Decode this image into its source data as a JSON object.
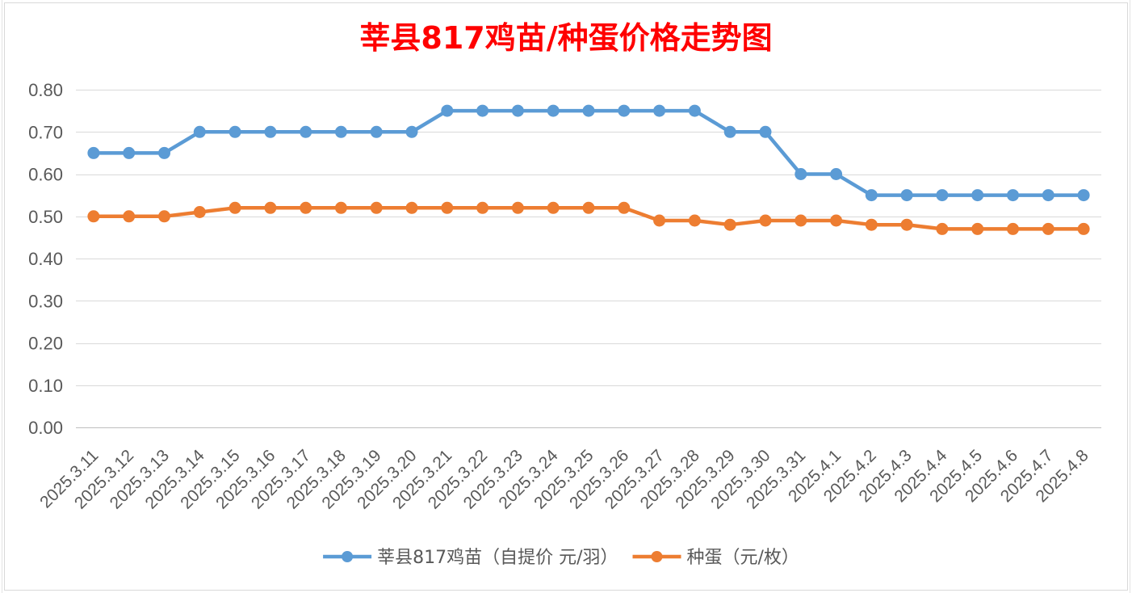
{
  "chart_data": {
    "type": "line",
    "title": "莘县817鸡苗/种蛋价格走势图",
    "title_color": "#FF0000",
    "categories": [
      "2025.3.11",
      "2025.3.12",
      "2025.3.13",
      "2025.3.14",
      "2025.3.15",
      "2025.3.16",
      "2025.3.17",
      "2025.3.18",
      "2025.3.19",
      "2025.3.20",
      "2025.3.21",
      "2025.3.22",
      "2025.3.23",
      "2025.3.24",
      "2025.3.25",
      "2025.3.26",
      "2025.3.27",
      "2025.3.28",
      "2025.3.29",
      "2025.3.30",
      "2025.3.31",
      "2025.4.1",
      "2025.4.2",
      "2025.4.3",
      "2025.4.4",
      "2025.4.5",
      "2025.4.6",
      "2025.4.7",
      "2025.4.8"
    ],
    "series": [
      {
        "name": "莘县817鸡苗（自提价 元/羽）",
        "color": "#5B9BD5",
        "values": [
          0.65,
          0.65,
          0.65,
          0.7,
          0.7,
          0.7,
          0.7,
          0.7,
          0.7,
          0.7,
          0.75,
          0.75,
          0.75,
          0.75,
          0.75,
          0.75,
          0.75,
          0.75,
          0.7,
          0.7,
          0.6,
          0.6,
          0.55,
          0.55,
          0.55,
          0.55,
          0.55,
          0.55,
          0.55
        ]
      },
      {
        "name": "种蛋（元/枚）",
        "color": "#ED7D31",
        "values": [
          0.5,
          0.5,
          0.5,
          0.51,
          0.52,
          0.52,
          0.52,
          0.52,
          0.52,
          0.52,
          0.52,
          0.52,
          0.52,
          0.52,
          0.52,
          0.52,
          0.49,
          0.49,
          0.48,
          0.49,
          0.49,
          0.49,
          0.48,
          0.48,
          0.47,
          0.47,
          0.47,
          0.47,
          0.47
        ]
      }
    ],
    "ylim": [
      0,
      0.8
    ],
    "yticks": [
      "0.00",
      "0.10",
      "0.20",
      "0.30",
      "0.40",
      "0.50",
      "0.60",
      "0.70",
      "0.80"
    ],
    "grid": true,
    "legend": "bottom"
  }
}
